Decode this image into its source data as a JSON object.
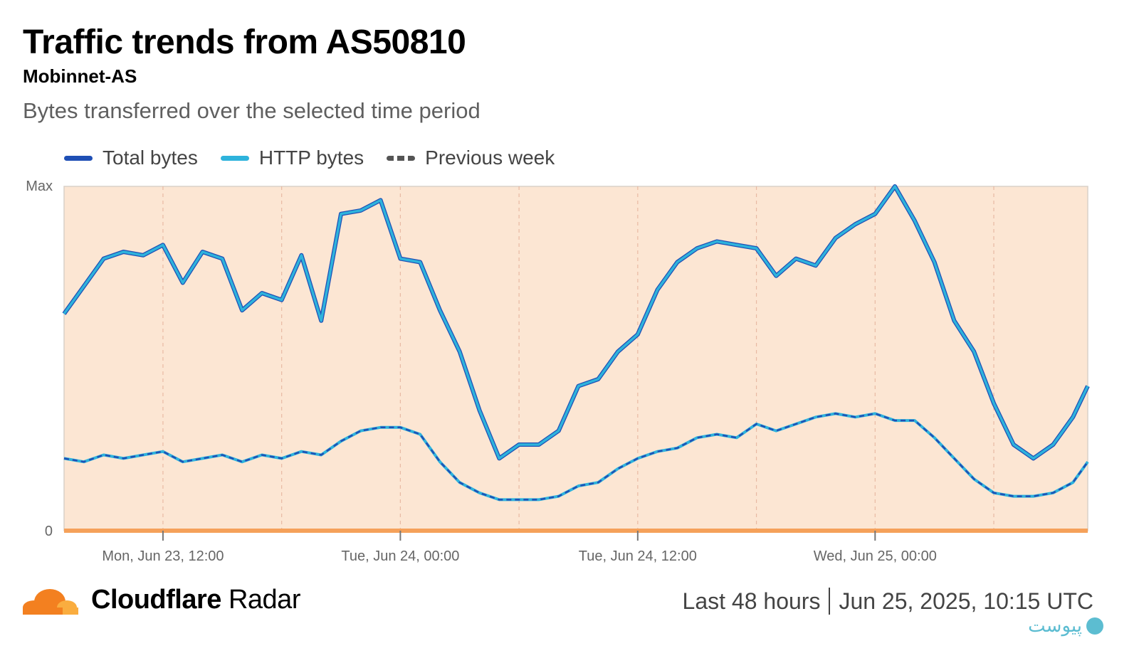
{
  "header": {
    "title": "Traffic trends from AS50810",
    "subtitle": "Mobinnet-AS",
    "description": "Bytes transferred over the selected time period"
  },
  "legend": [
    {
      "label": "Total bytes",
      "color": "#1f4fb5",
      "style": "solid"
    },
    {
      "label": "HTTP bytes",
      "color": "#2eb3dc",
      "style": "solid"
    },
    {
      "label": "Previous week",
      "color": "#555555",
      "style": "dashed"
    }
  ],
  "footer": {
    "brand_bold": "Cloudflare",
    "brand_light": "Radar",
    "period": "Last 48 hours",
    "timestamp": "Jun 25, 2025, 10:15 UTC"
  },
  "watermark": {
    "text": "پیوست"
  },
  "chart_data": {
    "type": "line",
    "ylim": [
      0,
      1
    ],
    "y_tick_labels": [
      "0",
      "Max"
    ],
    "x_range": [
      "2025-06-23T07:00",
      "2025-06-25T10:45"
    ],
    "x_ticks": [
      {
        "time": "2025-06-23T12:00",
        "label": "Mon, Jun 23, 12:00"
      },
      {
        "time": "2025-06-24T00:00",
        "label": "Tue, Jun 24, 00:00"
      },
      {
        "time": "2025-06-24T12:00",
        "label": "Tue, Jun 24, 12:00"
      },
      {
        "time": "2025-06-25T00:00",
        "label": "Wed, Jun 25, 00:00"
      }
    ],
    "grid_minor_times": [
      "2025-06-23T18:00",
      "2025-06-24T06:00",
      "2025-06-24T18:00",
      "2025-06-25T06:00"
    ],
    "colors": {
      "total": "#1f4fb5",
      "http": "#2eb3dc",
      "previous": "#1f4fb5",
      "plot_bg": "#fce6d3",
      "baseline": "#f5a15a"
    },
    "series": [
      {
        "name": "Total bytes",
        "points": [
          [
            "2025-06-23T07:00",
            0.63
          ],
          [
            "2025-06-23T08:00",
            0.71
          ],
          [
            "2025-06-23T09:00",
            0.79
          ],
          [
            "2025-06-23T10:00",
            0.81
          ],
          [
            "2025-06-23T11:00",
            0.8
          ],
          [
            "2025-06-23T12:00",
            0.83
          ],
          [
            "2025-06-23T13:00",
            0.72
          ],
          [
            "2025-06-23T14:00",
            0.81
          ],
          [
            "2025-06-23T15:00",
            0.79
          ],
          [
            "2025-06-23T16:00",
            0.64
          ],
          [
            "2025-06-23T17:00",
            0.69
          ],
          [
            "2025-06-23T18:00",
            0.67
          ],
          [
            "2025-06-23T19:00",
            0.8
          ],
          [
            "2025-06-23T20:00",
            0.61
          ],
          [
            "2025-06-23T21:00",
            0.92
          ],
          [
            "2025-06-23T22:00",
            0.93
          ],
          [
            "2025-06-23T23:00",
            0.96
          ],
          [
            "2025-06-24T00:00",
            0.79
          ],
          [
            "2025-06-24T01:00",
            0.78
          ],
          [
            "2025-06-24T02:00",
            0.64
          ],
          [
            "2025-06-24T03:00",
            0.52
          ],
          [
            "2025-06-24T04:00",
            0.35
          ],
          [
            "2025-06-24T05:00",
            0.21
          ],
          [
            "2025-06-24T06:00",
            0.25
          ],
          [
            "2025-06-24T07:00",
            0.25
          ],
          [
            "2025-06-24T08:00",
            0.29
          ],
          [
            "2025-06-24T09:00",
            0.42
          ],
          [
            "2025-06-24T10:00",
            0.44
          ],
          [
            "2025-06-24T11:00",
            0.52
          ],
          [
            "2025-06-24T12:00",
            0.57
          ],
          [
            "2025-06-24T13:00",
            0.7
          ],
          [
            "2025-06-24T14:00",
            0.78
          ],
          [
            "2025-06-24T15:00",
            0.82
          ],
          [
            "2025-06-24T16:00",
            0.84
          ],
          [
            "2025-06-24T17:00",
            0.83
          ],
          [
            "2025-06-24T18:00",
            0.82
          ],
          [
            "2025-06-24T19:00",
            0.74
          ],
          [
            "2025-06-24T20:00",
            0.79
          ],
          [
            "2025-06-24T21:00",
            0.77
          ],
          [
            "2025-06-24T22:00",
            0.85
          ],
          [
            "2025-06-24T23:00",
            0.89
          ],
          [
            "2025-06-25T00:00",
            0.92
          ],
          [
            "2025-06-25T01:00",
            1.0
          ],
          [
            "2025-06-25T02:00",
            0.9
          ],
          [
            "2025-06-25T03:00",
            0.78
          ],
          [
            "2025-06-25T04:00",
            0.61
          ],
          [
            "2025-06-25T05:00",
            0.52
          ],
          [
            "2025-06-25T06:00",
            0.37
          ],
          [
            "2025-06-25T07:00",
            0.25
          ],
          [
            "2025-06-25T08:00",
            0.21
          ],
          [
            "2025-06-25T09:00",
            0.25
          ],
          [
            "2025-06-25T10:00",
            0.33
          ],
          [
            "2025-06-25T10:45",
            0.42
          ]
        ]
      },
      {
        "name": "HTTP bytes",
        "points": [
          [
            "2025-06-23T07:00",
            0.63
          ],
          [
            "2025-06-23T08:00",
            0.71
          ],
          [
            "2025-06-23T09:00",
            0.79
          ],
          [
            "2025-06-23T10:00",
            0.81
          ],
          [
            "2025-06-23T11:00",
            0.8
          ],
          [
            "2025-06-23T12:00",
            0.83
          ],
          [
            "2025-06-23T13:00",
            0.72
          ],
          [
            "2025-06-23T14:00",
            0.81
          ],
          [
            "2025-06-23T15:00",
            0.79
          ],
          [
            "2025-06-23T16:00",
            0.64
          ],
          [
            "2025-06-23T17:00",
            0.69
          ],
          [
            "2025-06-23T18:00",
            0.67
          ],
          [
            "2025-06-23T19:00",
            0.8
          ],
          [
            "2025-06-23T20:00",
            0.61
          ],
          [
            "2025-06-23T21:00",
            0.92
          ],
          [
            "2025-06-23T22:00",
            0.93
          ],
          [
            "2025-06-23T23:00",
            0.96
          ],
          [
            "2025-06-24T00:00",
            0.79
          ],
          [
            "2025-06-24T01:00",
            0.78
          ],
          [
            "2025-06-24T02:00",
            0.64
          ],
          [
            "2025-06-24T03:00",
            0.52
          ],
          [
            "2025-06-24T04:00",
            0.35
          ],
          [
            "2025-06-24T05:00",
            0.21
          ],
          [
            "2025-06-24T06:00",
            0.25
          ],
          [
            "2025-06-24T07:00",
            0.25
          ],
          [
            "2025-06-24T08:00",
            0.29
          ],
          [
            "2025-06-24T09:00",
            0.42
          ],
          [
            "2025-06-24T10:00",
            0.44
          ],
          [
            "2025-06-24T11:00",
            0.52
          ],
          [
            "2025-06-24T12:00",
            0.57
          ],
          [
            "2025-06-24T13:00",
            0.7
          ],
          [
            "2025-06-24T14:00",
            0.78
          ],
          [
            "2025-06-24T15:00",
            0.82
          ],
          [
            "2025-06-24T16:00",
            0.84
          ],
          [
            "2025-06-24T17:00",
            0.83
          ],
          [
            "2025-06-24T18:00",
            0.82
          ],
          [
            "2025-06-24T19:00",
            0.74
          ],
          [
            "2025-06-24T20:00",
            0.79
          ],
          [
            "2025-06-24T21:00",
            0.77
          ],
          [
            "2025-06-24T22:00",
            0.85
          ],
          [
            "2025-06-24T23:00",
            0.89
          ],
          [
            "2025-06-25T00:00",
            0.92
          ],
          [
            "2025-06-25T01:00",
            1.0
          ],
          [
            "2025-06-25T02:00",
            0.9
          ],
          [
            "2025-06-25T03:00",
            0.78
          ],
          [
            "2025-06-25T04:00",
            0.61
          ],
          [
            "2025-06-25T05:00",
            0.52
          ],
          [
            "2025-06-25T06:00",
            0.37
          ],
          [
            "2025-06-25T07:00",
            0.25
          ],
          [
            "2025-06-25T08:00",
            0.21
          ],
          [
            "2025-06-25T09:00",
            0.25
          ],
          [
            "2025-06-25T10:00",
            0.33
          ],
          [
            "2025-06-25T10:45",
            0.42
          ]
        ]
      },
      {
        "name": "Previous week",
        "points": [
          [
            "2025-06-23T07:00",
            0.21
          ],
          [
            "2025-06-23T08:00",
            0.2
          ],
          [
            "2025-06-23T09:00",
            0.22
          ],
          [
            "2025-06-23T10:00",
            0.21
          ],
          [
            "2025-06-23T11:00",
            0.22
          ],
          [
            "2025-06-23T12:00",
            0.23
          ],
          [
            "2025-06-23T13:00",
            0.2
          ],
          [
            "2025-06-23T14:00",
            0.21
          ],
          [
            "2025-06-23T15:00",
            0.22
          ],
          [
            "2025-06-23T16:00",
            0.2
          ],
          [
            "2025-06-23T17:00",
            0.22
          ],
          [
            "2025-06-23T18:00",
            0.21
          ],
          [
            "2025-06-23T19:00",
            0.23
          ],
          [
            "2025-06-23T20:00",
            0.22
          ],
          [
            "2025-06-23T21:00",
            0.26
          ],
          [
            "2025-06-23T22:00",
            0.29
          ],
          [
            "2025-06-23T23:00",
            0.3
          ],
          [
            "2025-06-24T00:00",
            0.3
          ],
          [
            "2025-06-24T01:00",
            0.28
          ],
          [
            "2025-06-24T02:00",
            0.2
          ],
          [
            "2025-06-24T03:00",
            0.14
          ],
          [
            "2025-06-24T04:00",
            0.11
          ],
          [
            "2025-06-24T05:00",
            0.09
          ],
          [
            "2025-06-24T06:00",
            0.09
          ],
          [
            "2025-06-24T07:00",
            0.09
          ],
          [
            "2025-06-24T08:00",
            0.1
          ],
          [
            "2025-06-24T09:00",
            0.13
          ],
          [
            "2025-06-24T10:00",
            0.14
          ],
          [
            "2025-06-24T11:00",
            0.18
          ],
          [
            "2025-06-24T12:00",
            0.21
          ],
          [
            "2025-06-24T13:00",
            0.23
          ],
          [
            "2025-06-24T14:00",
            0.24
          ],
          [
            "2025-06-24T15:00",
            0.27
          ],
          [
            "2025-06-24T16:00",
            0.28
          ],
          [
            "2025-06-24T17:00",
            0.27
          ],
          [
            "2025-06-24T18:00",
            0.31
          ],
          [
            "2025-06-24T19:00",
            0.29
          ],
          [
            "2025-06-24T20:00",
            0.31
          ],
          [
            "2025-06-24T21:00",
            0.33
          ],
          [
            "2025-06-24T22:00",
            0.34
          ],
          [
            "2025-06-24T23:00",
            0.33
          ],
          [
            "2025-06-25T00:00",
            0.34
          ],
          [
            "2025-06-25T01:00",
            0.32
          ],
          [
            "2025-06-25T02:00",
            0.32
          ],
          [
            "2025-06-25T03:00",
            0.27
          ],
          [
            "2025-06-25T04:00",
            0.21
          ],
          [
            "2025-06-25T05:00",
            0.15
          ],
          [
            "2025-06-25T06:00",
            0.11
          ],
          [
            "2025-06-25T07:00",
            0.1
          ],
          [
            "2025-06-25T08:00",
            0.1
          ],
          [
            "2025-06-25T09:00",
            0.11
          ],
          [
            "2025-06-25T10:00",
            0.14
          ],
          [
            "2025-06-25T10:45",
            0.2
          ]
        ]
      }
    ]
  }
}
